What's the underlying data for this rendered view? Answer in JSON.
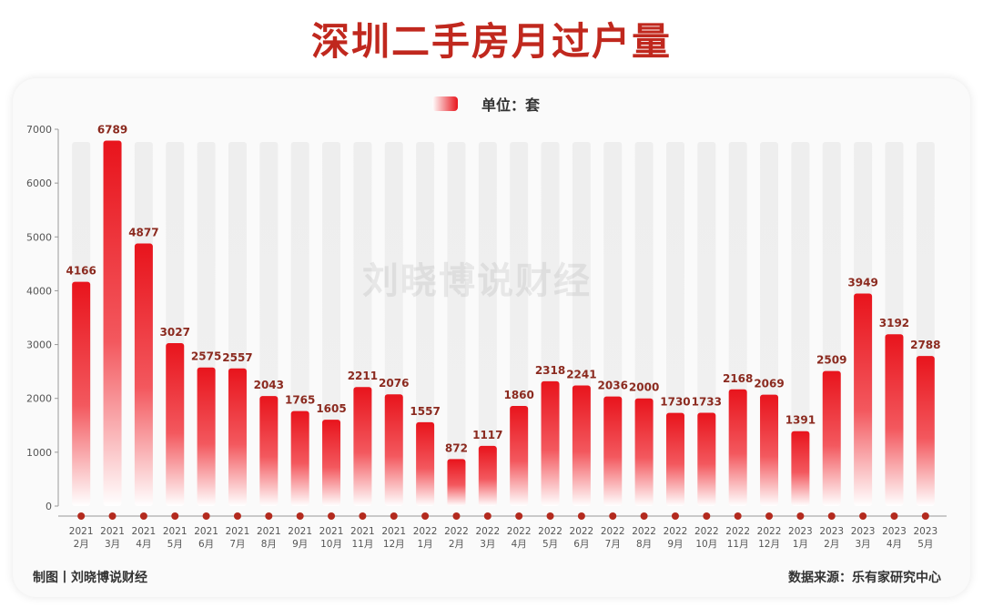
{
  "title": "深圳二手房月过户量",
  "legend": {
    "label": "单位：套"
  },
  "watermark": "刘晓博说财经",
  "footer": {
    "left": "制图丨刘晓博说财经",
    "right": "数据来源：乐有家研究中心"
  },
  "colors": {
    "bar_top": "#e8141c",
    "bar_bottom": "#ffffff",
    "value_label": "#8b2a1f",
    "title": "#c0281e",
    "background_bar": "#eeeeee"
  },
  "chart_data": {
    "type": "bar",
    "unit": "套",
    "ylim": [
      0,
      7000
    ],
    "yticks": [
      0,
      1000,
      2000,
      3000,
      4000,
      5000,
      6000,
      7000
    ],
    "grid": false,
    "categories": [
      [
        "2021",
        "2月"
      ],
      [
        "2021",
        "3月"
      ],
      [
        "2021",
        "4月"
      ],
      [
        "2021",
        "5月"
      ],
      [
        "2021",
        "6月"
      ],
      [
        "2021",
        "7月"
      ],
      [
        "2021",
        "8月"
      ],
      [
        "2021",
        "9月"
      ],
      [
        "2021",
        "10月"
      ],
      [
        "2021",
        "11月"
      ],
      [
        "2021",
        "12月"
      ],
      [
        "2022",
        "1月"
      ],
      [
        "2022",
        "2月"
      ],
      [
        "2022",
        "3月"
      ],
      [
        "2022",
        "4月"
      ],
      [
        "2022",
        "5月"
      ],
      [
        "2022",
        "6月"
      ],
      [
        "2022",
        "7月"
      ],
      [
        "2022",
        "8月"
      ],
      [
        "2022",
        "9月"
      ],
      [
        "2022",
        "10月"
      ],
      [
        "2022",
        "11月"
      ],
      [
        "2022",
        "12月"
      ],
      [
        "2023",
        "1月"
      ],
      [
        "2023",
        "2月"
      ],
      [
        "2023",
        "3月"
      ],
      [
        "2023",
        "4月"
      ],
      [
        "2023",
        "5月"
      ]
    ],
    "values": [
      4166,
      6789,
      4877,
      3027,
      2575,
      2557,
      2043,
      1765,
      1605,
      2211,
      2076,
      1557,
      872,
      1117,
      1860,
      2318,
      2241,
      2036,
      2000,
      1730,
      1733,
      2168,
      2069,
      1391,
      2509,
      3949,
      3192,
      2788
    ]
  }
}
